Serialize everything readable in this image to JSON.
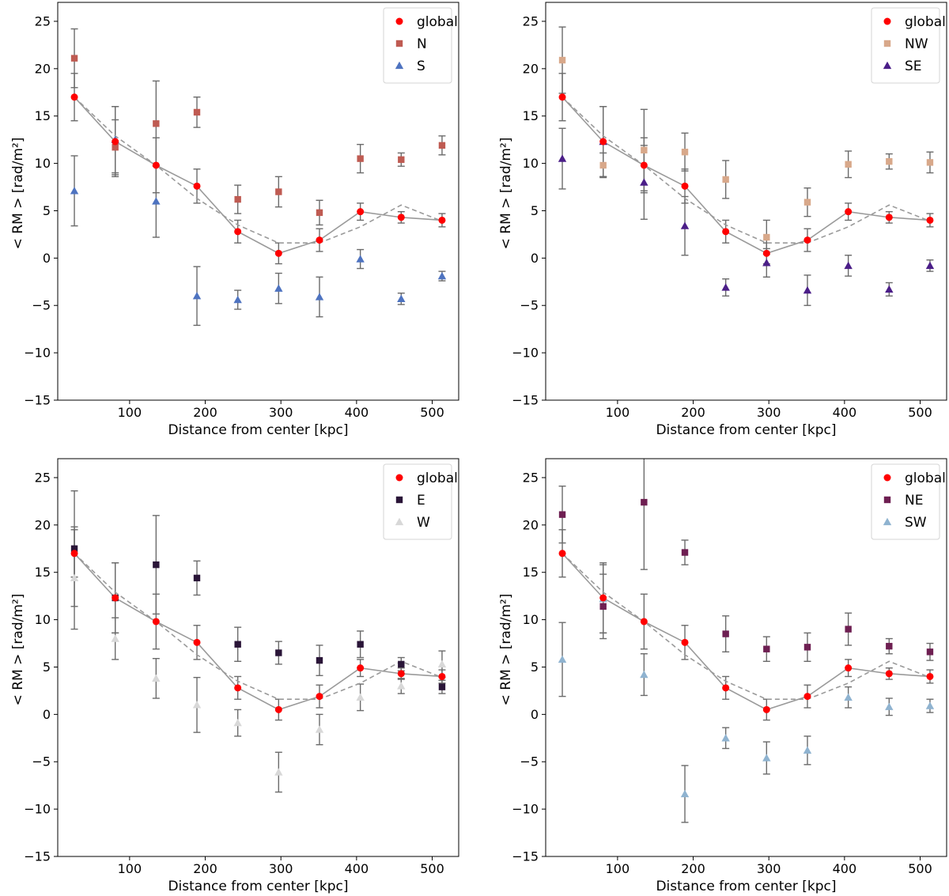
{
  "chart_data": [
    {
      "type": "scatter",
      "panel": "top-left",
      "xlabel": "Distance from center [kpc]",
      "ylabel": "< RM >  [rad/m²]",
      "xlim": [
        5,
        535
      ],
      "ylim": [
        -15,
        27
      ],
      "xticks": [
        100,
        200,
        300,
        400,
        500
      ],
      "yticks": [
        -15,
        -10,
        -5,
        0,
        5,
        10,
        15,
        20,
        25
      ],
      "legend_position": "top-right",
      "x": [
        27,
        81,
        135,
        189,
        243,
        297,
        351,
        405,
        459,
        513
      ],
      "model_line": [
        17,
        12.9,
        9.8,
        6.3,
        3.5,
        1.6,
        1.6,
        3.3,
        5.6,
        3.9
      ],
      "series": [
        {
          "name": "global",
          "marker": "circle",
          "color": "#ff0000",
          "values": [
            17.0,
            12.3,
            9.8,
            7.6,
            2.8,
            0.5,
            1.9,
            4.9,
            4.3,
            4.0
          ],
          "errors": [
            2.5,
            3.7,
            2.9,
            1.8,
            1.2,
            1.1,
            1.2,
            0.9,
            0.6,
            0.7
          ]
        },
        {
          "name": "N",
          "marker": "square",
          "color": "#bf5b52",
          "values": [
            21.1,
            11.7,
            14.2,
            15.4,
            6.2,
            7.0,
            4.8,
            10.5,
            10.4,
            11.9
          ],
          "errors": [
            3.1,
            2.9,
            4.5,
            1.6,
            1.5,
            1.6,
            1.3,
            1.5,
            0.7,
            1.0
          ]
        },
        {
          "name": "S",
          "marker": "triangle",
          "color": "#4e73c0",
          "values": [
            7.1,
            12.5,
            6.0,
            -4.0,
            -4.4,
            -3.2,
            -4.1,
            -0.1,
            -4.3,
            -1.9
          ],
          "errors": [
            3.7,
            3.5,
            3.8,
            3.1,
            1.0,
            1.6,
            2.1,
            1.0,
            0.6,
            0.5
          ]
        }
      ]
    },
    {
      "type": "scatter",
      "panel": "top-right",
      "xlabel": "Distance from center [kpc]",
      "ylabel": "< RM >  [rad/m²]",
      "xlim": [
        5,
        535
      ],
      "ylim": [
        -15,
        27
      ],
      "xticks": [
        100,
        200,
        300,
        400,
        500
      ],
      "yticks": [
        -15,
        -10,
        -5,
        0,
        5,
        10,
        15,
        20,
        25
      ],
      "legend_position": "top-right",
      "x": [
        27,
        81,
        135,
        189,
        243,
        297,
        351,
        405,
        459,
        513
      ],
      "model_line": [
        17,
        12.9,
        9.8,
        6.3,
        3.5,
        1.6,
        1.6,
        3.3,
        5.6,
        3.9
      ],
      "series": [
        {
          "name": "global",
          "marker": "circle",
          "color": "#ff0000",
          "values": [
            17.0,
            12.3,
            9.8,
            7.6,
            2.8,
            0.5,
            1.9,
            4.9,
            4.3,
            4.0
          ],
          "errors": [
            2.5,
            3.7,
            2.9,
            1.8,
            1.2,
            1.1,
            1.2,
            0.9,
            0.6,
            0.7
          ]
        },
        {
          "name": "NW",
          "marker": "square",
          "color": "#d8a88a",
          "values": [
            20.9,
            9.8,
            11.4,
            11.2,
            8.3,
            2.2,
            5.9,
            9.9,
            10.2,
            10.1
          ],
          "errors": [
            3.5,
            1.3,
            4.3,
            2.0,
            2.0,
            1.8,
            1.5,
            1.4,
            0.8,
            1.1
          ]
        },
        {
          "name": "SE",
          "marker": "triangle",
          "color": "#4b1e88",
          "values": [
            10.5,
            12.3,
            8.0,
            3.4,
            -3.1,
            -0.5,
            -3.4,
            -0.8,
            -3.3,
            -0.8
          ],
          "errors": [
            3.2,
            3.7,
            3.9,
            3.1,
            0.9,
            1.5,
            1.6,
            1.1,
            0.7,
            0.6
          ]
        }
      ]
    },
    {
      "type": "scatter",
      "panel": "bottom-left",
      "xlabel": "Distance from center [kpc]",
      "ylabel": "< RM >  [rad/m²]",
      "xlim": [
        5,
        535
      ],
      "ylim": [
        -15,
        27
      ],
      "xticks": [
        100,
        200,
        300,
        400,
        500
      ],
      "yticks": [
        -15,
        -10,
        -5,
        0,
        5,
        10,
        15,
        20,
        25
      ],
      "legend_position": "top-right",
      "x": [
        27,
        81,
        135,
        189,
        243,
        297,
        351,
        405,
        459,
        513
      ],
      "model_line": [
        17,
        12.9,
        9.8,
        6.3,
        3.5,
        1.6,
        1.6,
        3.3,
        5.6,
        3.9
      ],
      "series": [
        {
          "name": "global",
          "marker": "circle",
          "color": "#ff0000",
          "values": [
            17.0,
            12.3,
            9.8,
            7.6,
            2.8,
            0.5,
            1.9,
            4.9,
            4.3,
            4.0
          ],
          "errors": [
            2.5,
            3.7,
            2.9,
            1.8,
            1.2,
            1.1,
            1.2,
            0.9,
            0.6,
            0.7
          ]
        },
        {
          "name": "E",
          "marker": "square",
          "color": "#2a1538",
          "values": [
            17.5,
            12.3,
            15.8,
            14.4,
            7.4,
            6.5,
            5.7,
            7.4,
            5.3,
            2.9
          ],
          "errors": [
            6.1,
            3.7,
            5.2,
            1.8,
            1.8,
            1.2,
            1.6,
            1.4,
            0.7,
            0.7
          ]
        },
        {
          "name": "W",
          "marker": "triangle",
          "color": "#d8d8d8",
          "values": [
            14.4,
            8.0,
            3.8,
            1.0,
            -0.9,
            -6.1,
            -1.6,
            1.8,
            3.0,
            5.3
          ],
          "errors": [
            5.4,
            2.2,
            2.1,
            2.9,
            1.4,
            2.1,
            1.6,
            1.4,
            0.8,
            1.4
          ]
        }
      ]
    },
    {
      "type": "scatter",
      "panel": "bottom-right",
      "xlabel": "Distance from center [kpc]",
      "ylabel": "< RM >  [rad/m²]",
      "xlim": [
        5,
        535
      ],
      "ylim": [
        -15,
        27
      ],
      "xticks": [
        100,
        200,
        300,
        400,
        500
      ],
      "yticks": [
        -15,
        -10,
        -5,
        0,
        5,
        10,
        15,
        20,
        25
      ],
      "legend_position": "top-right",
      "x": [
        27,
        81,
        135,
        189,
        243,
        297,
        351,
        405,
        459,
        513
      ],
      "model_line": [
        17,
        12.9,
        9.8,
        6.3,
        3.5,
        1.6,
        1.6,
        3.3,
        5.6,
        3.9
      ],
      "series": [
        {
          "name": "global",
          "marker": "circle",
          "color": "#ff0000",
          "values": [
            17.0,
            12.3,
            9.8,
            7.6,
            2.8,
            0.5,
            1.9,
            4.9,
            4.3,
            4.0
          ],
          "errors": [
            2.5,
            3.7,
            2.9,
            1.8,
            1.2,
            1.1,
            1.2,
            0.9,
            0.6,
            0.7
          ]
        },
        {
          "name": "NE",
          "marker": "square",
          "color": "#6e1f52",
          "values": [
            21.1,
            11.4,
            22.4,
            17.1,
            8.5,
            6.9,
            7.1,
            9.0,
            7.2,
            6.6
          ],
          "errors": [
            3.0,
            3.4,
            7.1,
            1.3,
            1.9,
            1.3,
            1.5,
            1.7,
            0.8,
            0.9
          ]
        },
        {
          "name": "SW",
          "marker": "triangle",
          "color": "#8fb3d0",
          "values": [
            5.8,
            12.2,
            4.2,
            -8.4,
            -2.5,
            -4.6,
            -3.8,
            1.8,
            0.8,
            0.9
          ],
          "errors": [
            3.9,
            3.6,
            2.2,
            3.0,
            1.1,
            1.7,
            1.5,
            1.1,
            0.9,
            0.7
          ]
        }
      ]
    }
  ]
}
